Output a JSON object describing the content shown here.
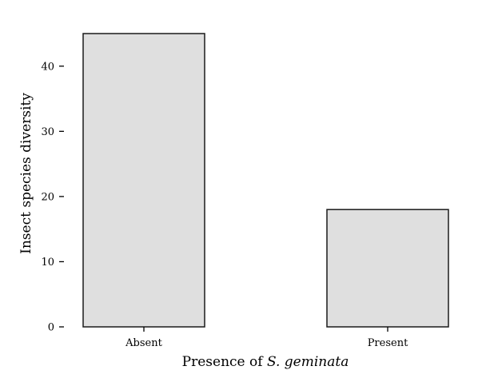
{
  "chart_data": {
    "type": "bar",
    "categories": [
      "Absent",
      "Present"
    ],
    "values": [
      45,
      18
    ],
    "xlabel_prefix": "Presence of",
    "xlabel_species": "S. geminata",
    "ylabel": "Insect species diversity",
    "ylim": [
      0,
      45
    ],
    "yticks": [
      0,
      10,
      20,
      30,
      40
    ],
    "grid": false,
    "legend": "none",
    "bar_fill": "#dfdfdf",
    "bar_edge": "#1a1a1a"
  }
}
